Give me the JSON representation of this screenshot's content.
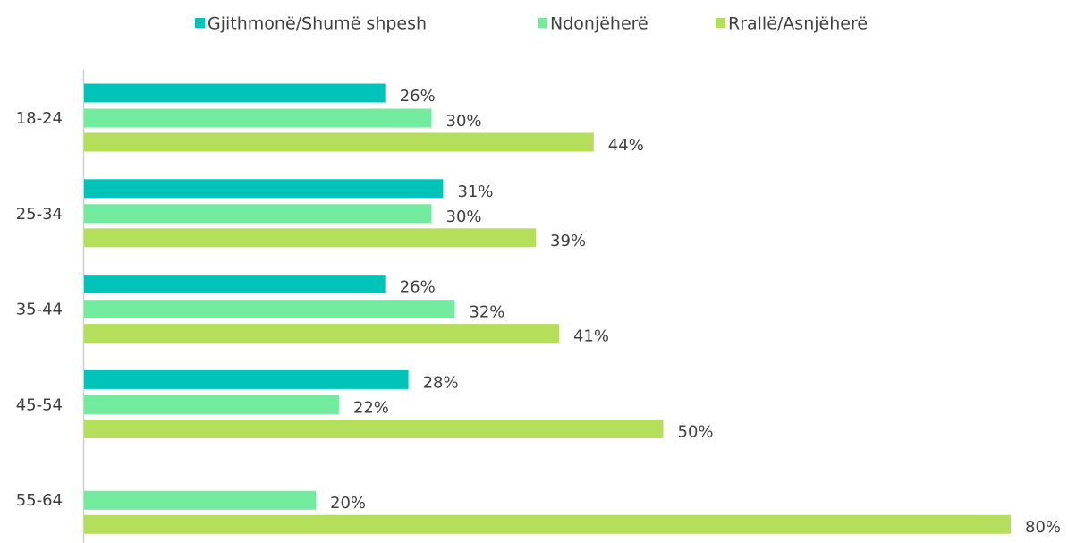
{
  "chart_data": {
    "type": "hbar",
    "categories": [
      "18-24",
      "25-34",
      "35-44",
      "45-54",
      "55-64"
    ],
    "series": [
      {
        "name": "Gjithmonë/Shumë shpesh",
        "color": "#00c4b8",
        "values": [
          26,
          31,
          26,
          28,
          null
        ],
        "value_labels": [
          "26%",
          "31%",
          "26%",
          "28%",
          null
        ]
      },
      {
        "name": "Ndonjëherë",
        "color": "#72eb9e",
        "values": [
          30,
          30,
          32,
          22,
          20
        ],
        "value_labels": [
          "30%",
          "30%",
          "32%",
          "22%",
          "20%"
        ]
      },
      {
        "name": "Rrallë/Asnjëherë",
        "color": "#b5de5a",
        "values": [
          44,
          39,
          41,
          50,
          80
        ],
        "value_labels": [
          "44%",
          "39%",
          "41%",
          "50%",
          "80%"
        ]
      }
    ],
    "legend": "top"
  }
}
